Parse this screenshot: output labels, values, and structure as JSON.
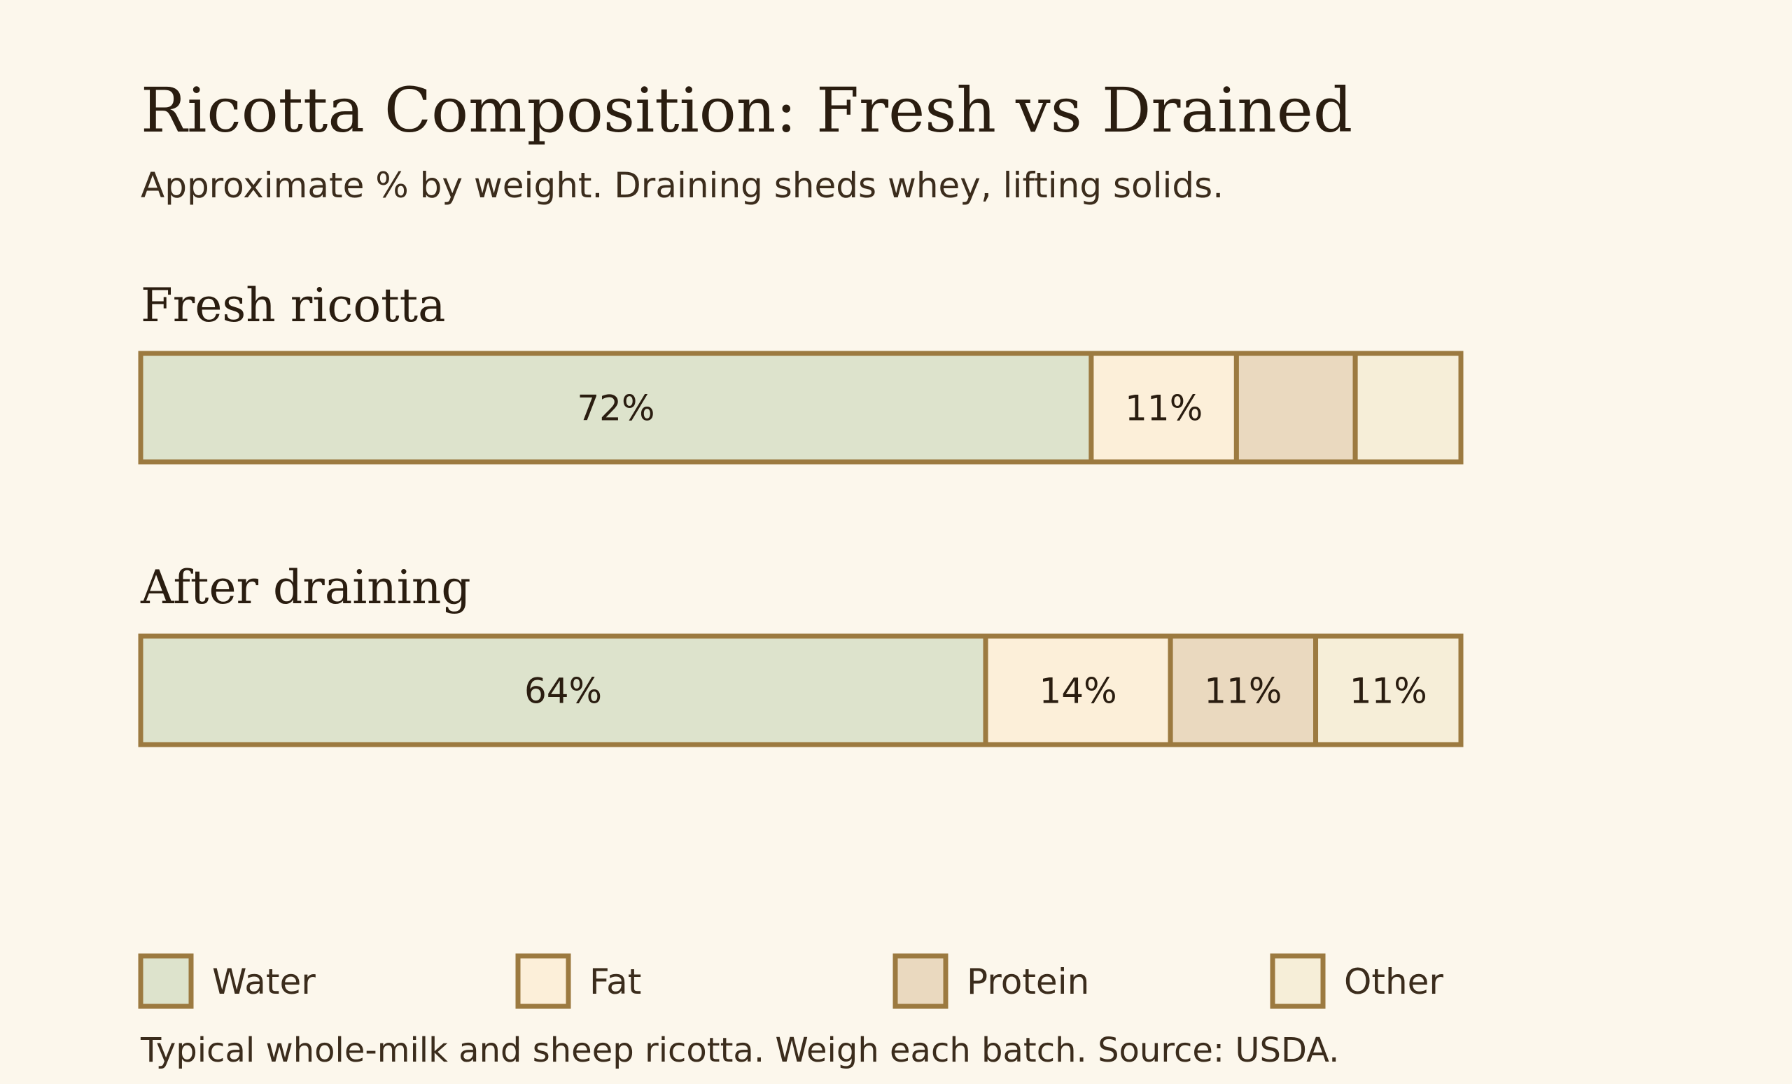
{
  "chart_data": {
    "type": "bar",
    "orientation": "horizontal",
    "stacked": true,
    "normalized": true,
    "title": "Ricotta Composition: Fresh vs Drained",
    "subtitle": "Approximate % by weight. Draining sheds whey, lifting solids.",
    "categories": [
      "Fresh ricotta",
      "After draining"
    ],
    "series": [
      {
        "name": "Water",
        "values": [
          72,
          64
        ],
        "labels": [
          "72%",
          "64%"
        ],
        "color": "#dde3cc"
      },
      {
        "name": "Fat",
        "values": [
          11,
          14
        ],
        "labels": [
          "11%",
          "14%"
        ],
        "color": "#fcefd9"
      },
      {
        "name": "Protein",
        "values": [
          9,
          11
        ],
        "labels": [
          "",
          "11%"
        ],
        "color": "#ead9bf"
      },
      {
        "name": "Other",
        "values": [
          8,
          11
        ],
        "labels": [
          "",
          "11%"
        ],
        "color": "#f6eed8"
      }
    ],
    "xlim": [
      0,
      100
    ],
    "grid": false,
    "legend_position": "bottom",
    "border_color": "#9c7a40",
    "footnote": "Typical whole-milk and sheep ricotta. Weigh each batch. Source: USDA."
  }
}
